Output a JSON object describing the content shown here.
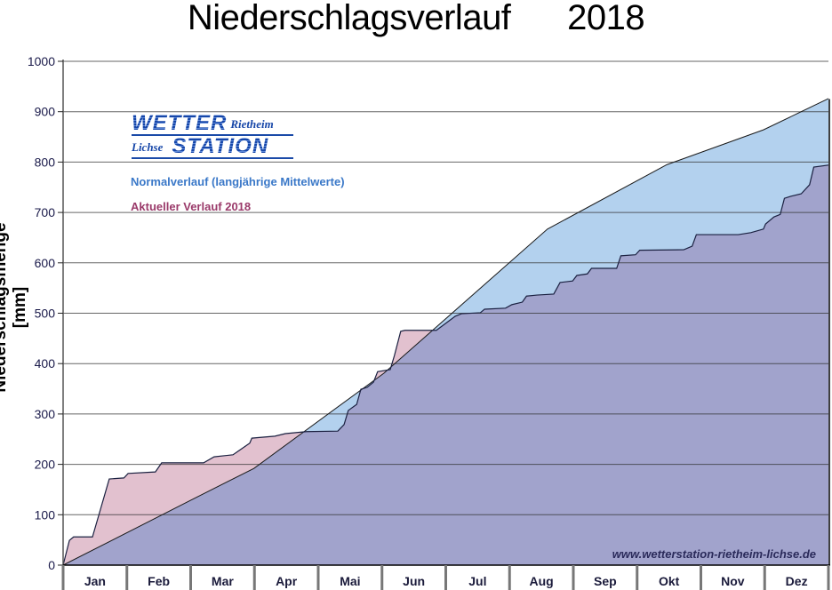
{
  "chart_data": {
    "type": "area",
    "title": "Niederschlagsverlauf",
    "year": "2018",
    "ylabel": "Niederschlagsmenge [mm]",
    "xlabel": "",
    "ylim": [
      0,
      1000
    ],
    "xlim_days": [
      0,
      365
    ],
    "yticks": [
      0,
      100,
      200,
      300,
      400,
      500,
      600,
      700,
      800,
      900,
      1000
    ],
    "ytick_labels": [
      "0",
      "100",
      "200",
      "300",
      "400",
      "500",
      "600",
      "700",
      "800",
      "900",
      "1000"
    ],
    "categories": [
      "Jan",
      "Feb",
      "Mar",
      "Apr",
      "Mai",
      "Jun",
      "Jul",
      "Aug",
      "Sep",
      "Okt",
      "Nov",
      "Dez"
    ],
    "grid": true,
    "legend_placement": "top-left",
    "series": [
      {
        "name": "Normalverlauf (langjährige Mittelwerte)",
        "color": "#b3d1ee",
        "x": [
          0,
          61,
          91,
          153,
          231,
          288,
          334,
          365
        ],
        "values": [
          0,
          129,
          192,
          381,
          667,
          795,
          864,
          926
        ]
      },
      {
        "name": "Aktueller Verlauf 2018",
        "color": "#e2c1cf",
        "x": [
          0,
          3,
          5,
          14,
          17,
          22,
          29,
          31,
          44,
          47,
          67,
          72,
          81,
          89,
          90,
          101,
          106,
          116,
          131,
          134,
          136,
          140,
          142,
          145,
          148,
          150,
          156,
          158,
          161,
          163,
          178,
          187,
          190,
          199,
          201,
          211,
          214,
          219,
          221,
          226,
          234,
          237,
          243,
          245,
          250,
          252,
          264,
          266,
          273,
          275,
          296,
          300,
          302,
          322,
          328,
          334,
          335,
          339,
          342,
          344,
          347,
          352,
          356,
          358,
          365
        ],
        "values": [
          0,
          49,
          56,
          56,
          99,
          171,
          173,
          182,
          185,
          203,
          203,
          215,
          219,
          242,
          252,
          256,
          261,
          265,
          266,
          279,
          307,
          319,
          349,
          353,
          363,
          384,
          388,
          416,
          464,
          466,
          466,
          494,
          499,
          501,
          508,
          510,
          517,
          522,
          534,
          536,
          538,
          561,
          564,
          575,
          578,
          589,
          589,
          614,
          616,
          625,
          626,
          633,
          656,
          656,
          660,
          667,
          677,
          691,
          696,
          728,
          732,
          737,
          755,
          790,
          794
        ]
      }
    ],
    "overlap_color": "#a1a3cc"
  },
  "logo": {
    "word1": "WETTER",
    "word2": "Rietheim",
    "word3": "Lichse",
    "word4": "STATION"
  },
  "website": "www.wetterstation-rietheim-lichse.de"
}
